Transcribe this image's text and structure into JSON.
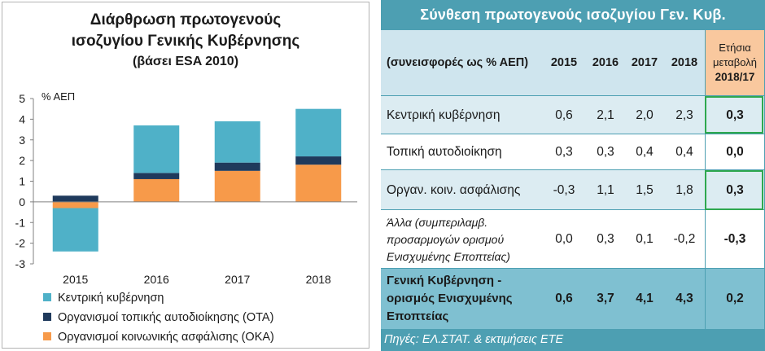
{
  "chart_data": {
    "type": "bar",
    "stacked": true,
    "title": "Διάρθρωση πρωτογενούς",
    "title_line2": "ισοζυγίου Γενικής Κυβέρνησης",
    "subtitle": "(βάσει ESA 2010)",
    "ylabel": "% ΑΕΠ",
    "xlabel": "",
    "ylim": [
      -3,
      5
    ],
    "yticks": [
      "5",
      "4",
      "3",
      "2",
      "1",
      "0",
      "-1",
      "-2",
      "-3"
    ],
    "categories": [
      "2015",
      "2016",
      "2017",
      "2018"
    ],
    "series": [
      {
        "name": "Οργανισμοί κοινωνικής ασφάλισης (ΟΚΑ)",
        "color": "#f79a4a",
        "values": [
          -0.3,
          1.1,
          1.5,
          1.8
        ]
      },
      {
        "name": "Οργανισμοί τοπικής αυτοδιοίκησης (ΟΤΑ)",
        "color": "#1f3a5c",
        "values": [
          0.3,
          0.3,
          0.4,
          0.4
        ]
      },
      {
        "name": "Κεντρική κυβέρνηση",
        "color": "#4fb1c8",
        "values": [
          -2.1,
          2.3,
          2.0,
          2.3
        ]
      }
    ],
    "legend": "bottom",
    "grid": false
  },
  "table": {
    "title": "Σύνθεση πρωτογενούς ισοζυγίου Γεν. Κυβ.",
    "header": {
      "label": "(συνεισφορές ως % ΑΕΠ)",
      "years": [
        "2015",
        "2016",
        "2017",
        "2018"
      ],
      "change_line1": "Ετήσια",
      "change_line2": "μεταβολή",
      "change_line3": "2018/17"
    },
    "rows": [
      {
        "label": "Κεντρική κυβέρνηση",
        "values": [
          "0,6",
          "2,1",
          "2,0",
          "2,3"
        ],
        "change": "0,3"
      },
      {
        "label": "Τοπική αυτοδιοίκηση",
        "values": [
          "0,3",
          "0,3",
          "0,4",
          "0,4"
        ],
        "change": "0,0"
      },
      {
        "label": "Οργαν. κοιν. ασφάλισης",
        "values": [
          "-0,3",
          "1,1",
          "1,5",
          "1,8"
        ],
        "change": "0,3"
      },
      {
        "label_line1": "Άλλα (συμπεριλαμβ.",
        "label_line2": "προσαρμογών ορισμού",
        "label_line3": "Ενισχυμένης Εποπτείας)",
        "values": [
          "0,0",
          "0,3",
          "0,1",
          "-0,2"
        ],
        "change": "-0,3"
      },
      {
        "label_line1": "Γενική Κυβέρνηση -",
        "label_line2": "ορισμός Ενισχυμένης",
        "label_line3": "Εποπτείας",
        "values": [
          "0,6",
          "3,7",
          "4,1",
          "4,3"
        ],
        "change": "0,2"
      }
    ],
    "source": "Πηγές: ΕΛ.ΣΤΑΤ. & εκτιμήσεις ΕΤΕ",
    "colors": {
      "accent": "#4d9fb2",
      "row_light": "#dcecf2",
      "header_bg": "#cfe5ee",
      "change_header_bg": "#f9c89e",
      "total_bg": "#7fc0d1",
      "highlight": "#2fa84f"
    }
  }
}
